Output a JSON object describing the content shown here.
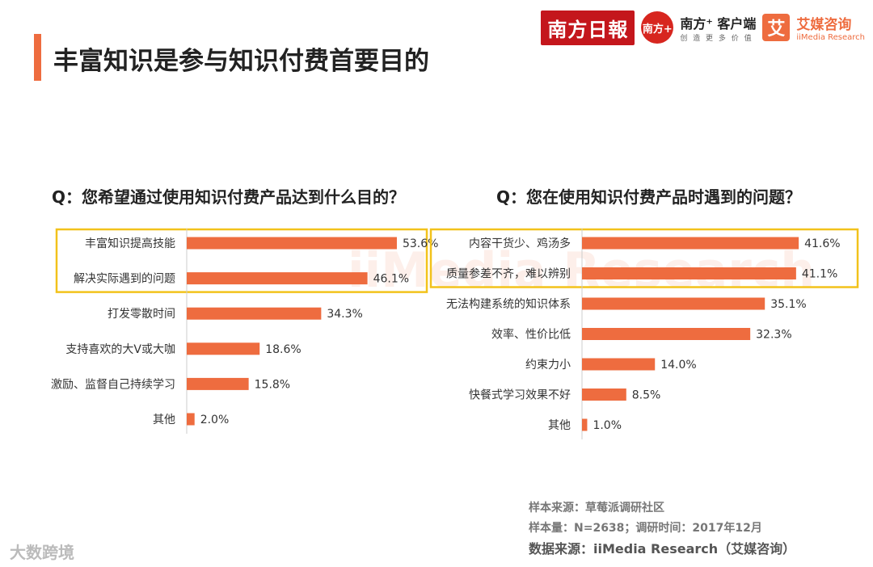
{
  "page": {
    "title": "丰富知识是参与知识付费首要目的"
  },
  "logos": {
    "nanfang_daily": "南方日報",
    "nanfang_plus": "南方+",
    "nanfang_client": "南方⁺ 客户端",
    "nanfang_client_sub": "创 造 更 多 价 值",
    "iimedia_mark": "艾",
    "iimedia_cn": "艾媒咨询",
    "iimedia_en": "iiMedia Research"
  },
  "colors": {
    "accent": "#ee6c3f",
    "bar": "#ee6c3f",
    "highlight_box": "#f2c21b"
  },
  "notes": {
    "sample_source": "样本来源：草莓派调研社区",
    "sample_size": "样本量：N=2638；调研时间：2017年12月",
    "data_source": "数据来源：iiMedia Research（艾媒咨询）"
  },
  "footer_watermark": "大数跨境",
  "chart_data": [
    {
      "type": "bar",
      "orientation": "horizontal",
      "title": "Q：您希望通过使用知识付费产品达到什么目的？",
      "categories": [
        "丰富知识提高技能",
        "解决实际遇到的问题",
        "打发零散时间",
        "支持喜欢的大V或大咖",
        "激励、监督自己持续学习",
        "其他"
      ],
      "values": [
        53.6,
        46.1,
        34.3,
        18.6,
        15.8,
        2.0
      ],
      "value_labels": [
        "53.6%",
        "46.1%",
        "34.3%",
        "18.6%",
        "15.8%",
        "2.0%"
      ],
      "highlighted": [
        0,
        1
      ],
      "xlim": [
        0,
        60
      ]
    },
    {
      "type": "bar",
      "orientation": "horizontal",
      "title": "Q：您在使用知识付费产品时遇到的问题？",
      "categories": [
        "内容干货少、鸡汤多",
        "质量参差不齐，难以辨别",
        "无法构建系统的知识体系",
        "效率、性价比低",
        "约束力小",
        "快餐式学习效果不好",
        "其他"
      ],
      "values": [
        41.6,
        41.1,
        35.1,
        32.3,
        14.0,
        8.5,
        1.0
      ],
      "value_labels": [
        "41.6%",
        "41.1%",
        "35.1%",
        "32.3%",
        "14.0%",
        "8.5%",
        "1.0%"
      ],
      "highlighted": [
        0,
        1
      ],
      "xlim": [
        0,
        45
      ]
    }
  ]
}
